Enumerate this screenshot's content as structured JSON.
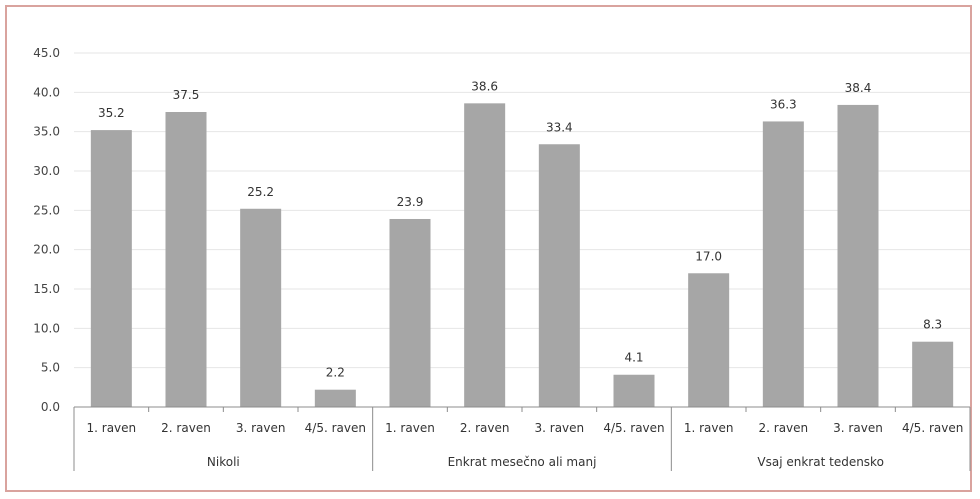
{
  "chart_data": {
    "type": "bar",
    "ylim": [
      0,
      45
    ],
    "ytick_step": 5,
    "yticks": [
      "0.0",
      "5.0",
      "10.0",
      "15.0",
      "20.0",
      "25.0",
      "30.0",
      "35.0",
      "40.0",
      "45.0"
    ],
    "grid": true,
    "groups": [
      {
        "label": "Nikoli",
        "categories": [
          "1. raven",
          "2. raven",
          "3. raven",
          "4/5. raven"
        ],
        "values": [
          35.2,
          37.5,
          25.2,
          2.2
        ]
      },
      {
        "label": "Enkrat mesečno ali manj",
        "categories": [
          "1. raven",
          "2. raven",
          "3. raven",
          "4/5. raven"
        ],
        "values": [
          23.9,
          38.6,
          33.4,
          4.1
        ]
      },
      {
        "label": "Vsaj enkrat tedensko",
        "categories": [
          "1. raven",
          "2. raven",
          "3. raven",
          "4/5. raven"
        ],
        "values": [
          17.0,
          36.3,
          38.4,
          8.3
        ]
      }
    ],
    "colors": {
      "bar": "#a6a6a6",
      "grid": "#e6e6e6",
      "axis": "#8c8c8c",
      "frame": "#d9a39e"
    }
  }
}
